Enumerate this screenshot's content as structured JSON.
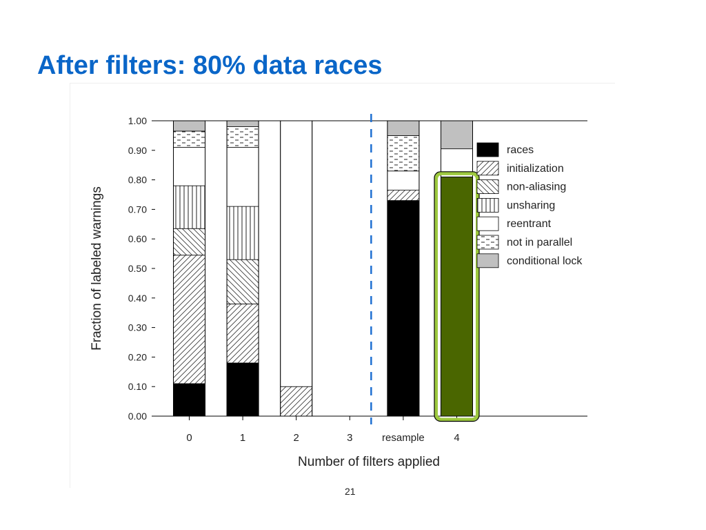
{
  "slide": {
    "title": "After filters: 80% data races",
    "page_number": "21"
  },
  "chart_data": {
    "type": "bar",
    "stacked": true,
    "categories": [
      "0",
      "1",
      "2",
      "3",
      "resample",
      "4"
    ],
    "xlabel": "Number of filters applied",
    "ylabel": "Fraction of labeled warnings",
    "ylim": [
      0,
      1
    ],
    "yticks": [
      "0.00",
      "0.10",
      "0.20",
      "0.30",
      "0.40",
      "0.50",
      "0.60",
      "0.70",
      "0.80",
      "0.90",
      "1.00"
    ],
    "legend_position": "right",
    "series": [
      {
        "name": "races",
        "pattern": "solid",
        "values": [
          0.11,
          0.18,
          0,
          0,
          0.73,
          0.81
        ]
      },
      {
        "name": "initialization",
        "pattern": "hatch-forward",
        "values": [
          0.435,
          0.2,
          0.1,
          0,
          0.035,
          0
        ]
      },
      {
        "name": "non-aliasing",
        "pattern": "hatch-backward",
        "values": [
          0.09,
          0.15,
          0,
          0,
          0,
          0
        ]
      },
      {
        "name": "unsharing",
        "pattern": "vertical",
        "values": [
          0.145,
          0.18,
          0,
          0,
          0,
          0
        ]
      },
      {
        "name": "reentrant",
        "pattern": "white",
        "values": [
          0.13,
          0.2,
          0.9,
          0,
          0.065,
          0.095
        ]
      },
      {
        "name": "not in parallel",
        "pattern": "dashes",
        "values": [
          0.055,
          0.07,
          0,
          0,
          0.12,
          0
        ]
      },
      {
        "name": "conditional lock",
        "pattern": "gray",
        "values": [
          0.035,
          0.02,
          0,
          0,
          0.05,
          0.095
        ]
      }
    ],
    "divider_after_category": "3",
    "highlight_category": "4",
    "colors": {
      "races": "#000000",
      "conditional lock": "#c0c0c0",
      "highlight_fill": "#4a6600",
      "highlight_ring": "#9ec93f",
      "divider": "#1f6fd1"
    }
  }
}
